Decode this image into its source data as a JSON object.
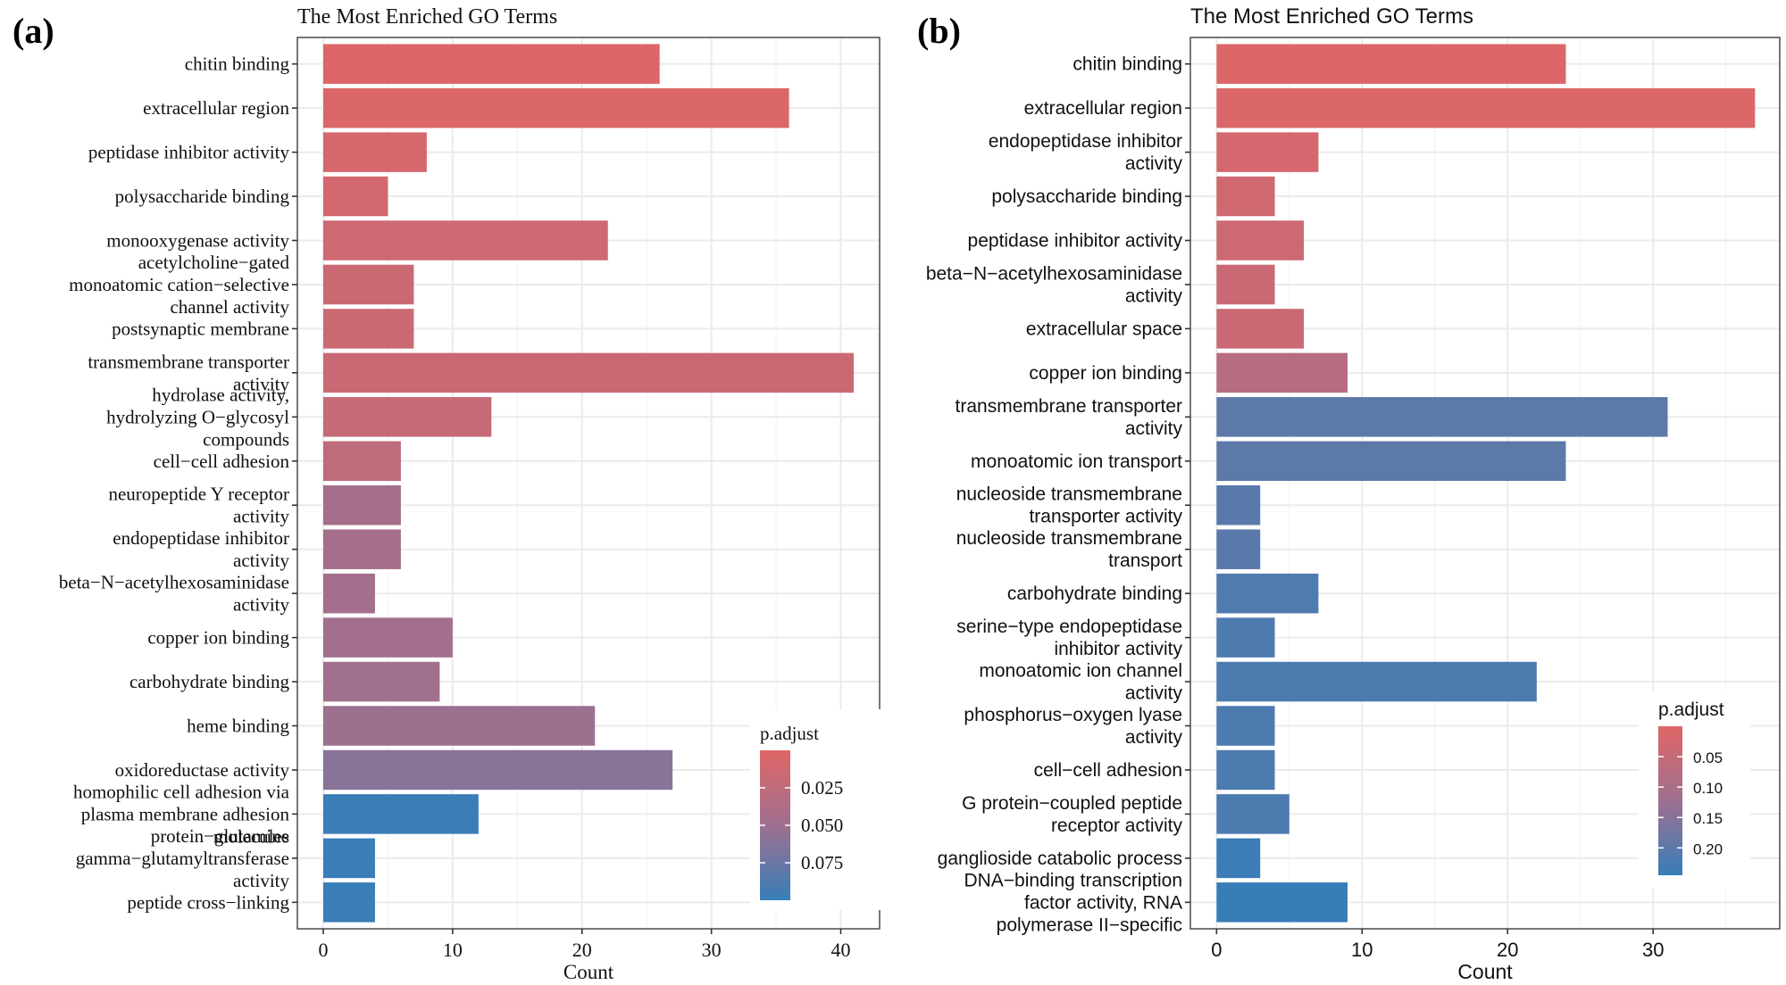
{
  "chart_data": [
    {
      "panel_label": "(a)",
      "type": "bar",
      "orientation": "horizontal",
      "title": "The Most Enriched GO Terms",
      "xlabel": "Count",
      "ylabel": "",
      "xlim": [
        -2,
        43
      ],
      "xticks": [
        0,
        10,
        20,
        30,
        40
      ],
      "xtick_labels": [
        "0",
        "10",
        "20",
        "30",
        "40"
      ],
      "grid": true,
      "font_style": "serif",
      "categories": [
        [
          "chitin binding"
        ],
        [
          "extracellular region"
        ],
        [
          "peptidase inhibitor activity"
        ],
        [
          "polysaccharide binding"
        ],
        [
          "monooxygenase activity"
        ],
        [
          "acetylcholine−gated",
          "monoatomic cation−selective",
          "channel activity"
        ],
        [
          "postsynaptic membrane"
        ],
        [
          "transmembrane transporter",
          "activity"
        ],
        [
          "hydrolase activity,",
          "hydrolyzing O−glycosyl",
          "compounds"
        ],
        [
          "cell−cell adhesion"
        ],
        [
          "neuropeptide Y receptor",
          "activity"
        ],
        [
          "endopeptidase inhibitor",
          "activity"
        ],
        [
          "beta−N−acetylhexosaminidase",
          "activity"
        ],
        [
          "copper ion binding"
        ],
        [
          "carbohydrate binding"
        ],
        [
          "heme binding"
        ],
        [
          "oxidoreductase activity"
        ],
        [
          "homophilic cell adhesion via",
          "plasma membrane adhesion",
          "molecules"
        ],
        [
          "protein−glutamine",
          "gamma−glutamyltransferase",
          "activity"
        ],
        [
          "peptide cross−linking"
        ]
      ],
      "values": [
        26,
        36,
        8,
        5,
        22,
        7,
        7,
        41,
        13,
        6,
        6,
        6,
        4,
        10,
        9,
        21,
        27,
        12,
        4,
        4
      ],
      "p_adjust": [
        0.002,
        0.004,
        0.008,
        0.01,
        0.014,
        0.016,
        0.016,
        0.017,
        0.02,
        0.026,
        0.045,
        0.045,
        0.046,
        0.047,
        0.048,
        0.05,
        0.06,
        0.098,
        0.099,
        0.099
      ],
      "legend": {
        "title": "p.adjust",
        "type": "colorbar",
        "placement": "bottom-right-inside",
        "range": [
          0.0,
          0.1
        ],
        "ticks": [
          0.025,
          0.05,
          0.075
        ],
        "tick_labels": [
          "0.025",
          "0.050",
          "0.075"
        ],
        "low_color": "#E06666",
        "high_color": "#377EB8"
      }
    },
    {
      "panel_label": "(b)",
      "type": "bar",
      "orientation": "horizontal",
      "title": "The Most Enriched GO Terms",
      "xlabel": "Count",
      "ylabel": "",
      "xlim": [
        -1.8,
        38.7
      ],
      "xticks": [
        0,
        10,
        20,
        30
      ],
      "xtick_labels": [
        "0",
        "10",
        "20",
        "30"
      ],
      "grid": true,
      "font_style": "sans",
      "categories": [
        [
          "chitin binding"
        ],
        [
          "extracellular region"
        ],
        [
          "endopeptidase inhibitor",
          "activity"
        ],
        [
          "polysaccharide binding"
        ],
        [
          "peptidase inhibitor activity"
        ],
        [
          "beta−N−acetylhexosaminidase",
          "activity"
        ],
        [
          "extracellular space"
        ],
        [
          "copper ion binding"
        ],
        [
          "transmembrane transporter",
          "activity"
        ],
        [
          "monoatomic ion transport"
        ],
        [
          "nucleoside transmembrane",
          "transporter activity"
        ],
        [
          "nucleoside transmembrane",
          "transport"
        ],
        [
          "carbohydrate binding"
        ],
        [
          "serine−type endopeptidase",
          "inhibitor activity"
        ],
        [
          "monoatomic ion channel",
          "activity"
        ],
        [
          "phosphorus−oxygen lyase",
          "activity"
        ],
        [
          "cell−cell adhesion"
        ],
        [
          "G protein−coupled peptide",
          "receptor activity"
        ],
        [
          "ganglioside catabolic process"
        ],
        [
          "DNA−binding transcription",
          "factor activity, RNA",
          "polymerase II−specific"
        ]
      ],
      "values": [
        24,
        37,
        7,
        4,
        6,
        4,
        6,
        9,
        31,
        24,
        3,
        3,
        7,
        4,
        22,
        4,
        4,
        5,
        3,
        9
      ],
      "p_adjust": [
        0.005,
        0.01,
        0.022,
        0.03,
        0.035,
        0.04,
        0.04,
        0.075,
        0.2,
        0.2,
        0.205,
        0.205,
        0.215,
        0.218,
        0.22,
        0.22,
        0.22,
        0.22,
        0.24,
        0.245
      ],
      "legend": {
        "title": "p.adjust",
        "type": "colorbar",
        "placement": "bottom-right-inside",
        "range": [
          0.0,
          0.245
        ],
        "ticks": [
          0.05,
          0.1,
          0.15,
          0.2
        ],
        "tick_labels": [
          "0.05",
          "0.10",
          "0.15",
          "0.20"
        ],
        "low_color": "#E06666",
        "high_color": "#377EB8"
      }
    }
  ]
}
